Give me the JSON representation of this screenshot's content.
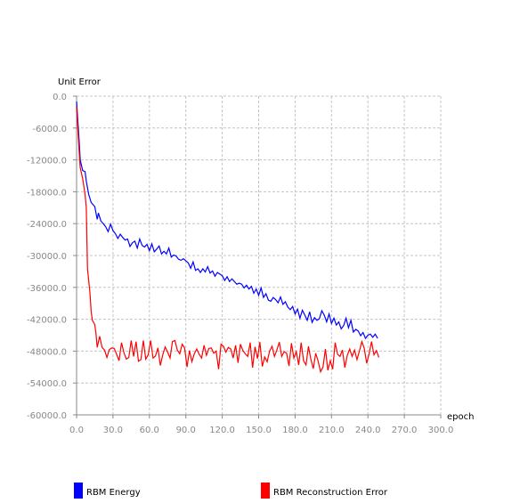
{
  "chart_data": {
    "type": "line",
    "title": "",
    "xlabel": "epoch",
    "ylabel": "Unit Error",
    "xlim": [
      0,
      300
    ],
    "ylim": [
      -60000,
      0
    ],
    "xticks": [
      0,
      30,
      60,
      90,
      120,
      150,
      180,
      210,
      240,
      270,
      300
    ],
    "yticks": [
      0,
      -6000,
      -12000,
      -18000,
      -24000,
      -30000,
      -36000,
      -42000,
      -48000,
      -54000,
      -60000
    ],
    "xtick_labels": [
      "0.0",
      "30.0",
      "60.0",
      "90.0",
      "120.0",
      "150.0",
      "180.0",
      "210.0",
      "240.0",
      "270.0",
      "300.0"
    ],
    "ytick_labels": [
      "0.0",
      "-6000.0",
      "-12000.0",
      "-18000.0",
      "-24000.0",
      "-30000.0",
      "-36000.0",
      "-42000.0",
      "-48000.0",
      "-54000.0",
      "-60000.0"
    ],
    "grid": true,
    "legend": "bottom",
    "series": [
      {
        "name": "RBM Energy",
        "color": "#0000ff",
        "x": [
          0,
          2,
          3,
          4,
          5,
          7,
          8,
          10,
          12,
          15,
          17,
          18,
          20,
          22,
          24,
          26,
          28,
          30,
          32,
          34,
          36,
          38,
          40,
          42,
          44,
          46,
          48,
          50,
          52,
          54,
          56,
          58,
          60,
          62,
          64,
          66,
          68,
          70,
          72,
          74,
          76,
          78,
          80,
          82,
          84,
          86,
          88,
          90,
          92,
          94,
          96,
          98,
          100,
          102,
          104,
          106,
          108,
          110,
          112,
          114,
          116,
          118,
          120,
          122,
          124,
          126,
          128,
          130,
          132,
          134,
          136,
          138,
          140,
          142,
          144,
          146,
          148,
          150,
          152,
          154,
          156,
          158,
          160,
          162,
          164,
          166,
          168,
          170,
          172,
          174,
          176,
          178,
          180,
          182,
          184,
          186,
          188,
          190,
          192,
          194,
          196,
          198,
          200,
          202,
          204,
          206,
          208,
          210,
          212,
          214,
          216,
          218,
          220,
          222,
          224,
          226,
          228,
          230,
          232,
          234,
          236,
          238,
          240,
          242,
          244,
          246,
          248
        ],
        "y": [
          -1000,
          -8000,
          -12000,
          -13000,
          -14000,
          -14200,
          -16000,
          -18500,
          -20000,
          -20800,
          -23200,
          -22000,
          -23500,
          -24000,
          -24600,
          -25500,
          -24100,
          -25300,
          -25900,
          -26800,
          -26000,
          -26600,
          -27100,
          -26900,
          -28300,
          -27600,
          -27300,
          -28600,
          -26900,
          -28100,
          -28400,
          -27900,
          -29100,
          -27800,
          -29300,
          -28800,
          -28200,
          -29700,
          -29200,
          -29700,
          -28600,
          -30300,
          -29900,
          -30100,
          -30700,
          -30900,
          -30600,
          -31000,
          -31400,
          -32400,
          -31200,
          -32800,
          -32500,
          -33200,
          -32500,
          -33100,
          -32100,
          -33300,
          -32900,
          -33900,
          -33200,
          -33500,
          -33800,
          -34700,
          -34000,
          -34900,
          -34400,
          -34900,
          -35400,
          -35200,
          -35400,
          -36100,
          -35600,
          -36300,
          -35800,
          -37100,
          -36300,
          -37500,
          -36100,
          -37900,
          -37200,
          -38400,
          -38600,
          -37900,
          -38300,
          -38900,
          -37800,
          -39200,
          -38700,
          -39700,
          -40200,
          -39600,
          -41000,
          -40100,
          -41800,
          -40300,
          -41200,
          -42200,
          -40600,
          -42600,
          -41700,
          -42200,
          -41900,
          -40400,
          -41200,
          -42500,
          -41000,
          -42800,
          -41800,
          -43100,
          -42500,
          -43800,
          -43200,
          -41800,
          -43600,
          -42200,
          -44400,
          -43900,
          -44200,
          -45100,
          -44500,
          -45600,
          -45000,
          -44800,
          -45400,
          -44800,
          -45600
        ]
      },
      {
        "name": "RBM Reconstruction Error",
        "color": "#ff0000",
        "x": [
          0,
          2,
          3,
          5,
          7,
          8,
          9,
          11,
          12,
          13,
          15,
          16,
          17,
          19,
          21,
          23,
          25,
          27,
          29,
          31,
          33,
          35,
          37,
          39,
          41,
          43,
          45,
          47,
          49,
          51,
          53,
          55,
          57,
          59,
          61,
          63,
          65,
          67,
          69,
          71,
          73,
          75,
          77,
          79,
          81,
          83,
          85,
          87,
          89,
          91,
          93,
          95,
          97,
          99,
          101,
          103,
          105,
          107,
          109,
          111,
          113,
          115,
          117,
          119,
          121,
          123,
          125,
          127,
          129,
          131,
          133,
          135,
          137,
          139,
          141,
          143,
          145,
          147,
          149,
          151,
          153,
          155,
          157,
          159,
          161,
          163,
          165,
          167,
          169,
          171,
          173,
          175,
          177,
          179,
          181,
          183,
          185,
          187,
          189,
          191,
          193,
          195,
          197,
          199,
          201,
          203,
          205,
          207,
          209,
          211,
          213,
          215,
          217,
          219,
          221,
          223,
          225,
          227,
          229,
          231,
          233,
          235,
          237,
          239,
          241,
          243,
          245,
          247,
          249
        ],
        "y": [
          -2000,
          -10000,
          -13500,
          -15500,
          -18500,
          -21000,
          -32500,
          -37000,
          -40500,
          -42200,
          -43000,
          -44700,
          -47300,
          -45200,
          -47300,
          -47800,
          -49200,
          -47700,
          -47400,
          -47500,
          -48600,
          -49800,
          -46400,
          -48300,
          -49500,
          -49200,
          -46000,
          -49000,
          -46200,
          -49900,
          -49600,
          -46000,
          -49500,
          -48700,
          -46000,
          -49300,
          -48900,
          -47400,
          -50700,
          -48700,
          -47200,
          -48200,
          -49300,
          -46200,
          -46000,
          -47800,
          -48500,
          -46700,
          -47400,
          -51000,
          -47900,
          -50000,
          -48500,
          -47600,
          -48600,
          -49300,
          -46900,
          -48800,
          -47500,
          -47400,
          -48400,
          -48000,
          -51400,
          -46700,
          -47100,
          -48200,
          -47300,
          -47600,
          -49300,
          -46900,
          -50200,
          -46700,
          -47900,
          -48500,
          -49000,
          -46400,
          -51100,
          -47200,
          -49400,
          -46300,
          -50900,
          -49100,
          -50000,
          -48000,
          -47100,
          -49000,
          -47800,
          -46300,
          -49000,
          -48100,
          -48400,
          -50800,
          -46500,
          -49300,
          -48100,
          -50600,
          -46400,
          -49800,
          -50600,
          -47100,
          -49500,
          -51300,
          -48400,
          -49900,
          -51900,
          -51000,
          -47600,
          -51600,
          -49800,
          -51400,
          -46400,
          -48600,
          -49000,
          -47800,
          -51100,
          -48800,
          -47600,
          -49000,
          -47800,
          -49600,
          -48000,
          -46200,
          -47500,
          -50300,
          -48500,
          -46200,
          -48700,
          -47900,
          -49200
        ]
      }
    ]
  }
}
